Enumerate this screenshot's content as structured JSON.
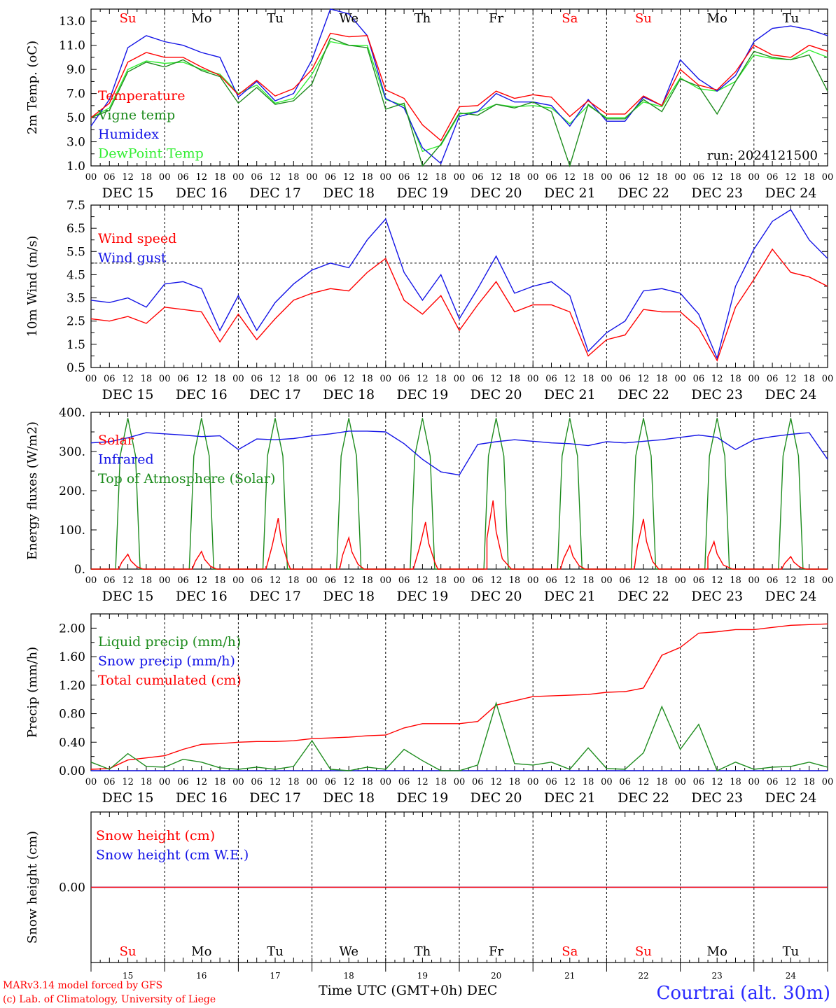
{
  "footer": {
    "credit_line1": "MARv3.14 model forced by GFS",
    "credit_line2": "(c) Lab. of Climatology, University of Liege",
    "station": "Courtrai (alt. 30m)",
    "x_title": "Time UTC (GMT+0h) DEC"
  },
  "colors": {
    "red": "#ff0000",
    "dark_green": "#1e8c1e",
    "blue": "#1414e6",
    "light_green": "#33ee33",
    "axis": "#000000",
    "weekend_day": "#ff0000"
  },
  "time_axis": {
    "start": "2024-12-15 00 UTC",
    "end": "2024-12-25 00 UTC",
    "hour_ticks": [
      "00",
      "06",
      "12",
      "18"
    ],
    "date_labels": [
      "DEC 15",
      "DEC 16",
      "DEC 17",
      "DEC 18",
      "DEC 19",
      "DEC 20",
      "DEC 21",
      "DEC 22",
      "DEC 23",
      "DEC 24"
    ],
    "weekdays": [
      "Su",
      "Mo",
      "Tu",
      "We",
      "Th",
      "Fr",
      "Sa",
      "Su",
      "Mo",
      "Tu"
    ],
    "weekday_is_weekend": [
      true,
      false,
      false,
      false,
      false,
      false,
      true,
      true,
      false,
      false
    ],
    "day_numbers": [
      "15",
      "16",
      "17",
      "18",
      "19",
      "20",
      "21",
      "22",
      "23",
      "24"
    ]
  },
  "chart_data": [
    {
      "type": "line",
      "id": "temperature",
      "ylabel": "2m Temp. (oC)",
      "ylim": [
        1.0,
        14.0
      ],
      "yticks": [
        1.0,
        3.0,
        5.0,
        7.0,
        9.0,
        11.0,
        13.0
      ],
      "ytick_labels": [
        "1.0",
        "3.0",
        "5.0",
        "7.0",
        "9.0",
        "11.0",
        "13.0"
      ],
      "annotation": "run: 2024121500",
      "x_hours": [
        0,
        6,
        12,
        18,
        24,
        30,
        36,
        42,
        48,
        54,
        60,
        66,
        72,
        78,
        84,
        90,
        96,
        102,
        108,
        114,
        120,
        126,
        132,
        138,
        144,
        150,
        156,
        162,
        168,
        174,
        180,
        186,
        192,
        198,
        204,
        210,
        216,
        222,
        228,
        234,
        240
      ],
      "series": [
        {
          "name": "Temperature",
          "color": "#ff0000",
          "values": [
            5.0,
            6.2,
            9.6,
            10.4,
            10.0,
            10.0,
            9.2,
            8.5,
            6.9,
            8.1,
            6.8,
            7.4,
            9.0,
            12.0,
            11.7,
            11.8,
            7.3,
            6.6,
            4.4,
            3.1,
            5.9,
            6.0,
            7.2,
            6.6,
            6.9,
            6.7,
            5.1,
            6.4,
            5.3,
            5.3,
            6.8,
            6.0,
            9.0,
            7.7,
            7.3,
            8.8,
            11.0,
            10.2,
            10.0,
            11.0,
            10.5
          ]
        },
        {
          "name": "Vigne temp",
          "color": "#1e8c1e",
          "values": [
            5.0,
            5.6,
            8.8,
            9.6,
            9.2,
            9.8,
            8.9,
            8.4,
            6.2,
            7.5,
            6.1,
            6.4,
            7.8,
            11.6,
            11.0,
            10.8,
            5.7,
            6.2,
            0.5,
            2.8,
            5.4,
            5.2,
            6.1,
            5.8,
            6.3,
            5.5,
            1.0,
            6.1,
            4.9,
            4.9,
            6.5,
            5.5,
            8.2,
            7.6,
            5.3,
            8.0,
            10.5,
            10.0,
            9.8,
            10.2,
            7.2
          ]
        },
        {
          "name": "Humidex",
          "color": "#1414e6",
          "values": [
            4.3,
            6.5,
            10.8,
            11.8,
            11.3,
            11.0,
            10.4,
            10.0,
            6.7,
            8.0,
            6.4,
            7.0,
            9.8,
            14.0,
            13.6,
            11.8,
            6.6,
            5.8,
            2.5,
            1.2,
            5.1,
            5.5,
            7.0,
            6.3,
            6.3,
            6.0,
            4.3,
            6.5,
            4.7,
            4.7,
            6.7,
            6.0,
            9.8,
            8.2,
            7.2,
            8.5,
            11.3,
            12.4,
            12.6,
            12.3,
            11.8
          ]
        },
        {
          "name": "DewPoint Temp",
          "color": "#33ee33",
          "values": [
            5.0,
            5.8,
            9.0,
            9.7,
            9.5,
            9.6,
            9.0,
            8.6,
            7.0,
            7.7,
            6.2,
            6.6,
            8.6,
            11.3,
            11.0,
            11.0,
            6.5,
            6.0,
            2.2,
            2.7,
            5.3,
            5.5,
            6.1,
            5.9,
            6.0,
            5.8,
            4.5,
            6.0,
            5.0,
            5.0,
            6.3,
            5.9,
            8.3,
            7.4,
            7.2,
            8.0,
            10.2,
            9.9,
            9.8,
            10.6,
            10.0
          ]
        }
      ]
    },
    {
      "type": "line",
      "id": "wind",
      "ylabel": "10m Wind (m/s)",
      "ylim": [
        0.5,
        7.5
      ],
      "yticks": [
        0.5,
        1.5,
        2.5,
        3.5,
        4.5,
        5.5,
        6.5,
        7.5
      ],
      "ytick_labels": [
        "0.5",
        "1.5",
        "2.5",
        "3.5",
        "4.5",
        "5.5",
        "6.5",
        "7.5"
      ],
      "reference_line": 5.0,
      "x_hours": [
        0,
        6,
        12,
        18,
        24,
        30,
        36,
        42,
        48,
        54,
        60,
        66,
        72,
        78,
        84,
        90,
        96,
        102,
        108,
        114,
        120,
        126,
        132,
        138,
        144,
        150,
        156,
        162,
        168,
        174,
        180,
        186,
        192,
        198,
        204,
        210,
        216,
        222,
        228,
        234,
        240
      ],
      "series": [
        {
          "name": "Wind speed",
          "color": "#ff0000",
          "values": [
            2.6,
            2.5,
            2.7,
            2.4,
            3.1,
            3.0,
            2.9,
            1.6,
            2.8,
            1.7,
            2.6,
            3.4,
            3.7,
            3.9,
            3.8,
            4.6,
            5.2,
            3.4,
            2.8,
            3.6,
            2.1,
            3.2,
            4.2,
            2.9,
            3.2,
            3.2,
            2.9,
            1.0,
            1.7,
            1.9,
            3.0,
            2.9,
            2.9,
            2.2,
            0.8,
            3.1,
            4.3,
            5.6,
            4.6,
            4.4,
            4.0
          ]
        },
        {
          "name": "Wind gust",
          "color": "#1414e6",
          "values": [
            3.4,
            3.3,
            3.5,
            3.1,
            4.1,
            4.2,
            3.9,
            2.1,
            3.6,
            2.1,
            3.3,
            4.1,
            4.7,
            5.0,
            4.8,
            6.0,
            6.9,
            4.6,
            3.4,
            4.5,
            2.6,
            3.9,
            5.3,
            3.7,
            4.0,
            4.2,
            3.6,
            1.2,
            2.0,
            2.5,
            3.8,
            3.9,
            3.7,
            2.8,
            0.9,
            4.0,
            5.6,
            6.8,
            7.3,
            6.0,
            5.2
          ]
        }
      ]
    },
    {
      "type": "line",
      "id": "energy",
      "ylabel": "Energy fluxes (W/m2)",
      "ylim": [
        0,
        400
      ],
      "yticks": [
        0,
        100,
        200,
        300,
        400
      ],
      "ytick_labels": [
        "0.",
        "100.",
        "200.",
        "300.",
        "400."
      ],
      "series": [
        {
          "name": "Solar",
          "color": "#ff0000",
          "daily_peaks": [
            38,
            45,
            130,
            80,
            120,
            175,
            60,
            128,
            70,
            32
          ],
          "peak_hour_offsets": [
            12,
            12,
            13,
            12,
            13,
            11,
            12,
            12,
            11,
            12
          ]
        },
        {
          "name": "Infrared",
          "color": "#1414e6",
          "x_hours": [
            0,
            6,
            12,
            18,
            24,
            30,
            36,
            42,
            48,
            54,
            60,
            66,
            72,
            78,
            84,
            90,
            96,
            102,
            108,
            114,
            120,
            126,
            132,
            138,
            144,
            150,
            156,
            162,
            168,
            174,
            180,
            186,
            192,
            198,
            204,
            210,
            216,
            222,
            228,
            234,
            240
          ],
          "values": [
            322,
            325,
            335,
            348,
            345,
            342,
            338,
            340,
            305,
            332,
            330,
            333,
            340,
            345,
            352,
            352,
            350,
            320,
            280,
            248,
            240,
            318,
            325,
            330,
            326,
            322,
            320,
            315,
            325,
            322,
            326,
            330,
            336,
            342,
            336,
            305,
            330,
            338,
            344,
            348,
            280
          ]
        },
        {
          "name": "Top of Atmosphere (Solar)",
          "color": "#1e8c1e",
          "daily_peak": 385,
          "sunrise_hour": 8,
          "sunset_hour": 16
        }
      ]
    },
    {
      "type": "line",
      "id": "precip",
      "ylabel": "Precip (mm/h)",
      "ylim": [
        0,
        2.2
      ],
      "yticks": [
        0,
        0.4,
        0.8,
        1.2,
        1.6,
        2.0
      ],
      "ytick_labels": [
        "0.00",
        "0.40",
        "0.80",
        "1.20",
        "1.60",
        "2.00"
      ],
      "x_hours": [
        0,
        6,
        12,
        18,
        24,
        30,
        36,
        42,
        48,
        54,
        60,
        66,
        72,
        78,
        84,
        90,
        96,
        102,
        108,
        114,
        120,
        126,
        132,
        138,
        144,
        150,
        156,
        162,
        168,
        174,
        180,
        186,
        192,
        198,
        204,
        210,
        216,
        222,
        228,
        234,
        240
      ],
      "series": [
        {
          "name": "Liquid precip (mm/h)",
          "color": "#1e8c1e",
          "values": [
            0.12,
            0.02,
            0.24,
            0.06,
            0.05,
            0.16,
            0.12,
            0.04,
            0.02,
            0.05,
            0.02,
            0.06,
            0.42,
            0.02,
            0.0,
            0.05,
            0.02,
            0.3,
            0.14,
            0.0,
            0.0,
            0.08,
            0.95,
            0.1,
            0.08,
            0.12,
            0.02,
            0.32,
            0.03,
            0.02,
            0.25,
            0.9,
            0.3,
            0.65,
            0.0,
            0.12,
            0.02,
            0.05,
            0.06,
            0.12,
            0.05
          ]
        },
        {
          "name": "Snow precip (mm/h)",
          "color": "#1414e6",
          "values": [
            0,
            0,
            0,
            0,
            0,
            0,
            0,
            0,
            0,
            0,
            0,
            0,
            0,
            0,
            0,
            0,
            0,
            0,
            0,
            0,
            0,
            0,
            0,
            0,
            0,
            0,
            0,
            0,
            0,
            0,
            0,
            0,
            0,
            0,
            0,
            0,
            0,
            0,
            0,
            0,
            0
          ]
        },
        {
          "name": "Total cumulated (cm)",
          "color": "#ff0000",
          "values": [
            0.02,
            0.03,
            0.15,
            0.18,
            0.21,
            0.3,
            0.37,
            0.38,
            0.4,
            0.41,
            0.41,
            0.42,
            0.45,
            0.46,
            0.47,
            0.49,
            0.5,
            0.6,
            0.66,
            0.66,
            0.66,
            0.69,
            0.92,
            0.98,
            1.04,
            1.05,
            1.06,
            1.07,
            1.1,
            1.11,
            1.16,
            1.62,
            1.73,
            1.93,
            1.95,
            1.98,
            1.98,
            2.01,
            2.04,
            2.05,
            2.06
          ]
        }
      ]
    },
    {
      "type": "line",
      "id": "snow",
      "ylabel": "Snow height (cm)",
      "ylim": [
        -1,
        1
      ],
      "yticks": [
        0
      ],
      "ytick_labels": [
        "0.00"
      ],
      "series": [
        {
          "name": "Snow height (cm)",
          "color": "#ff0000",
          "values": [
            0,
            0
          ]
        },
        {
          "name": "Snow height (cm W.E.)",
          "color": "#1414e6",
          "values": [
            0,
            0
          ]
        }
      ]
    }
  ]
}
